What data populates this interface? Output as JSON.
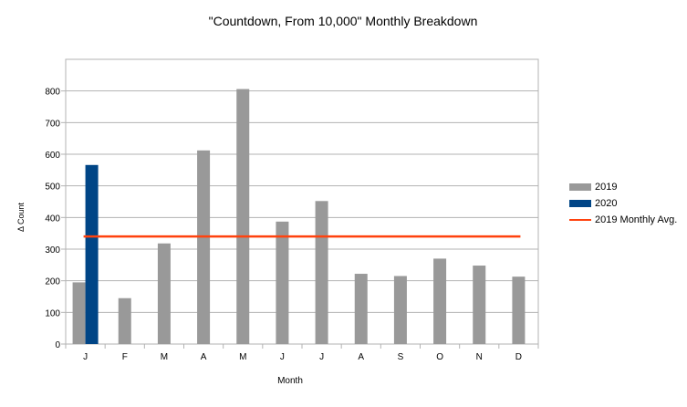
{
  "chart_data": {
    "type": "bar",
    "title": "\"Countdown, From 10,000\" Monthly Breakdown",
    "xlabel": "Month",
    "ylabel": "Δ Count",
    "categories": [
      "J",
      "F",
      "M",
      "A",
      "M",
      "J",
      "J",
      "A",
      "S",
      "O",
      "N",
      "D"
    ],
    "series": [
      {
        "name": "2019",
        "color": "#999999",
        "values": [
          195,
          145,
          318,
          612,
          806,
          387,
          452,
          222,
          215,
          270,
          248,
          213
        ]
      },
      {
        "name": "2020",
        "color": "#004586",
        "values": [
          566,
          null,
          null,
          null,
          null,
          null,
          null,
          null,
          null,
          null,
          null,
          null
        ]
      }
    ],
    "reference_line": {
      "name": "2019 Monthly Avg.",
      "value": 340,
      "color": "#ff420e"
    },
    "ylim": [
      0,
      900
    ],
    "yticks": [
      0,
      100,
      200,
      300,
      400,
      500,
      600,
      700,
      800
    ],
    "grid": true,
    "legend_position": "right"
  }
}
